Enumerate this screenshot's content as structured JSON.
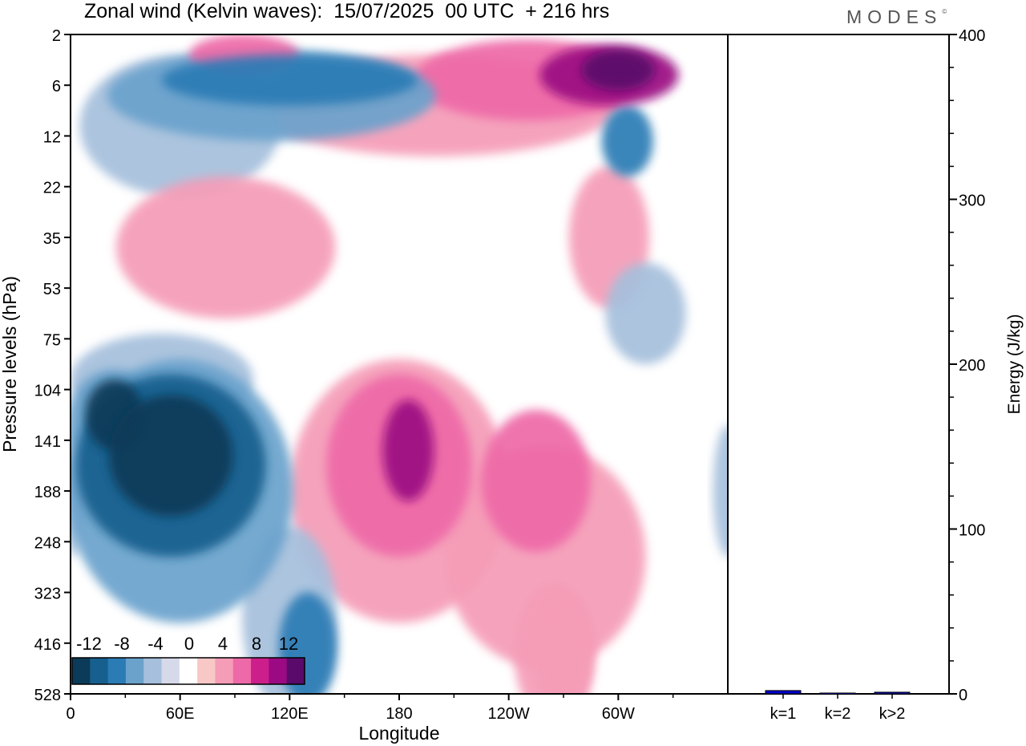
{
  "header": {
    "title": "Zonal wind (Kelvin waves):  15/07/2025  00 UTC  + 216 hrs",
    "logo": "MODES",
    "logo_mark": "©"
  },
  "colors": {
    "neg": [
      "#0b3b58",
      "#165f8e",
      "#2b7cb5",
      "#6aa2cc",
      "#a5bfdc",
      "#d6d9ea"
    ],
    "zero": "#ffffff",
    "pos": [
      "#f8c8c6",
      "#f59cb7",
      "#ee69a7",
      "#cd1f8c",
      "#9b0a82",
      "#5a0a6a"
    ],
    "bar": "#0000cc"
  },
  "chart_data": [
    {
      "type": "heatmap",
      "title": "Zonal wind (Kelvin waves):  15/07/2025  00 UTC  + 216 hrs",
      "xlabel": "Longitude",
      "ylabel": "Pressure levels (hPa)",
      "x_ticks": [
        "0",
        "60E",
        "120E",
        "180",
        "120W",
        "60W"
      ],
      "x_tick_values": [
        0,
        60,
        120,
        180,
        240,
        300
      ],
      "xlim": [
        0,
        360
      ],
      "y_ticks": [
        "2",
        "6",
        "12",
        "22",
        "35",
        "53",
        "75",
        "104",
        "141",
        "188",
        "248",
        "323",
        "416",
        "528"
      ],
      "colorbar": {
        "labels": [
          "-12",
          "-8",
          "-4",
          "0",
          "4",
          "8",
          "12"
        ],
        "levels": [
          -12,
          -10,
          -8,
          -6,
          -4,
          -2,
          0,
          2,
          4,
          6,
          8,
          10,
          12
        ]
      },
      "features": [
        {
          "lon": 55,
          "level_index": 8.3,
          "value": -13,
          "rx": 34,
          "ry": 1.2
        },
        {
          "lon": 55,
          "level_index": 8.5,
          "value": -8,
          "rx": 52,
          "ry": 1.8
        },
        {
          "lon": 60,
          "level_index": 9.0,
          "value": -4,
          "rx": 62,
          "ry": 2.6
        },
        {
          "lon": 24,
          "level_index": 7.5,
          "value": -10,
          "rx": 16,
          "ry": 0.7
        },
        {
          "lon": 24,
          "level_index": 7.6,
          "value": -5,
          "rx": 26,
          "ry": 1.0
        },
        {
          "lon": 130,
          "level_index": 12.1,
          "value": -6,
          "rx": 16,
          "ry": 1.1
        },
        {
          "lon": 120,
          "level_index": 11.5,
          "value": -3,
          "rx": 26,
          "ry": 1.8
        },
        {
          "lon": 185,
          "level_index": 8.2,
          "value": 9,
          "rx": 14,
          "ry": 1.0
        },
        {
          "lon": 180,
          "level_index": 8.5,
          "value": 5,
          "rx": 40,
          "ry": 1.8
        },
        {
          "lon": 180,
          "level_index": 9.0,
          "value": 2,
          "rx": 60,
          "ry": 2.6
        },
        {
          "lon": 255,
          "level_index": 8.8,
          "value": 4,
          "rx": 30,
          "ry": 1.4
        },
        {
          "lon": 260,
          "level_index": 10.3,
          "value": 2,
          "rx": 55,
          "ry": 2.2
        },
        {
          "lon": 265,
          "level_index": 12.2,
          "value": 2,
          "rx": 22,
          "ry": 1.4
        },
        {
          "lon": 300,
          "level_index": 0.7,
          "value": 13,
          "rx": 20,
          "ry": 0.4
        },
        {
          "lon": 295,
          "level_index": 0.8,
          "value": 8,
          "rx": 38,
          "ry": 0.6
        },
        {
          "lon": 250,
          "level_index": 0.9,
          "value": 4,
          "rx": 62,
          "ry": 0.8
        },
        {
          "lon": 200,
          "level_index": 1.4,
          "value": 2,
          "rx": 100,
          "ry": 1.0
        },
        {
          "lon": 120,
          "level_index": 0.9,
          "value": -7,
          "rx": 70,
          "ry": 0.5
        },
        {
          "lon": 110,
          "level_index": 1.2,
          "value": -4,
          "rx": 90,
          "ry": 0.9
        },
        {
          "lon": 60,
          "level_index": 1.8,
          "value": -2,
          "rx": 55,
          "ry": 1.4
        },
        {
          "lon": 95,
          "level_index": 0.4,
          "value": 4,
          "rx": 30,
          "ry": 0.4
        },
        {
          "lon": 85,
          "level_index": 4.2,
          "value": 2,
          "rx": 60,
          "ry": 1.4
        },
        {
          "lon": 50,
          "level_index": 6.8,
          "value": -3,
          "rx": 50,
          "ry": 0.9
        },
        {
          "lon": 305,
          "level_index": 2.1,
          "value": -6,
          "rx": 14,
          "ry": 0.7
        },
        {
          "lon": 295,
          "level_index": 4.0,
          "value": 2,
          "rx": 22,
          "ry": 1.4
        },
        {
          "lon": 315,
          "level_index": 5.5,
          "value": -2,
          "rx": 22,
          "ry": 1.0
        },
        {
          "lon": 270,
          "level_index": 12.2,
          "value": 3,
          "rx": 16,
          "ry": 1.2
        },
        {
          "lon": 2,
          "level_index": 9.0,
          "value": -3,
          "rx": 5,
          "ry": 1.3
        },
        {
          "lon": 360,
          "level_index": 9.0,
          "value": -3,
          "rx": 8,
          "ry": 1.3
        }
      ]
    },
    {
      "type": "bar",
      "categories": [
        "k=1",
        "k=2",
        "k>2"
      ],
      "values": [
        2,
        0.5,
        1
      ],
      "ylabel": "Energy (J/kg)",
      "ylim": [
        0,
        400
      ],
      "y_ticks": [
        "0",
        "100",
        "200",
        "300",
        "400"
      ],
      "y_tick_values": [
        0,
        100,
        200,
        300,
        400
      ]
    }
  ]
}
